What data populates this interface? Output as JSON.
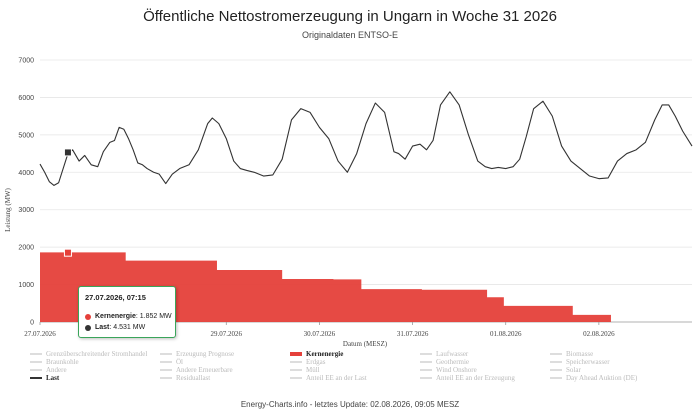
{
  "title": "Öffentliche Nettostromerzeugung in Ungarn in Woche 31 2026",
  "subtitle": "Originaldaten ENTSO-E",
  "footer": "Energy-Charts.info - letztes Update: 02.08.2026, 09:05 MESZ",
  "tooltip": {
    "header": "27.07.2026, 07:15",
    "rows": [
      {
        "label": "Kernenergie",
        "value": "1.852 MW",
        "color": "#e5403a"
      },
      {
        "label": "Last",
        "value": "4.531 MW",
        "color": "#333333"
      }
    ]
  },
  "legend": [
    {
      "label": "Grenzüberschreitender Stromhandel",
      "active": false
    },
    {
      "label": "Erzeugung Prognose",
      "active": false
    },
    {
      "label": "Kernenergie",
      "active": true,
      "color": "#e5403a"
    },
    {
      "label": "Laufwasser",
      "active": false
    },
    {
      "label": "Biomasse",
      "active": false
    },
    {
      "label": "Braunkohle",
      "active": false
    },
    {
      "label": "Öl",
      "active": false
    },
    {
      "label": "Erdgas",
      "active": false
    },
    {
      "label": "Geothermie",
      "active": false
    },
    {
      "label": "Speicherwasser",
      "active": false
    },
    {
      "label": "Andere",
      "active": false
    },
    {
      "label": "Andere Erneuerbare",
      "active": false
    },
    {
      "label": "Müll",
      "active": false
    },
    {
      "label": "Wind Onshore",
      "active": false
    },
    {
      "label": "Solar",
      "active": false
    },
    {
      "label": "Last",
      "active": true,
      "color": "#333333"
    },
    {
      "label": "Residuallast",
      "active": false
    },
    {
      "label": "Anteil EE an der Last",
      "active": false
    },
    {
      "label": "Anteil EE an der Erzeugung",
      "active": false
    },
    {
      "label": "Day Ahead Auktion (DE)",
      "active": false
    }
  ],
  "chart_data": {
    "type": "area",
    "ylabel": "Leistung (MW)",
    "xlabel": "Datum (MESZ)",
    "ylim": [
      0,
      7000
    ],
    "yticks": [
      0,
      1000,
      2000,
      3000,
      4000,
      5000,
      6000,
      7000
    ],
    "xlim": [
      0,
      7.0
    ],
    "xtick_labels": [
      "27.07.2026",
      "29.07.2026",
      "30.07.2026",
      "31.07.2026",
      "01.08.2026",
      "02.08.2026"
    ],
    "xtick_positions": [
      0,
      2,
      3,
      4,
      5,
      6
    ],
    "grid": true,
    "series": [
      {
        "name": "Kernenergie",
        "kind": "area",
        "color": "#e5403a",
        "x": [
          0,
          0.92,
          0.92,
          1.9,
          1.9,
          2.6,
          2.6,
          3.15,
          3.15,
          3.45,
          3.45,
          4.1,
          4.1,
          4.55,
          4.55,
          4.8,
          4.8,
          4.98,
          4.98,
          5.72,
          5.72,
          5.93,
          5.93,
          6.13
        ],
        "y": [
          1860,
          1860,
          1640,
          1640,
          1390,
          1390,
          1150,
          1150,
          1140,
          1140,
          880,
          880,
          860,
          860,
          860,
          860,
          660,
          660,
          430,
          430,
          190,
          190,
          190,
          190
        ]
      },
      {
        "name": "Last",
        "kind": "line",
        "color": "#333333",
        "x": [
          0,
          0.05,
          0.1,
          0.15,
          0.2,
          0.3,
          0.35,
          0.42,
          0.48,
          0.55,
          0.62,
          0.68,
          0.75,
          0.8,
          0.85,
          0.9,
          0.95,
          1.0,
          1.05,
          1.1,
          1.15,
          1.22,
          1.28,
          1.35,
          1.42,
          1.5,
          1.6,
          1.7,
          1.8,
          1.85,
          1.92,
          2.0,
          2.08,
          2.15,
          2.22,
          2.3,
          2.4,
          2.5,
          2.6,
          2.7,
          2.8,
          2.9,
          3.0,
          3.1,
          3.2,
          3.3,
          3.4,
          3.5,
          3.6,
          3.7,
          3.8,
          3.85,
          3.92,
          4.0,
          4.08,
          4.15,
          4.22,
          4.3,
          4.4,
          4.5,
          4.6,
          4.7,
          4.78,
          4.85,
          4.92,
          5.0,
          5.08,
          5.15,
          5.22,
          5.3,
          5.4,
          5.5,
          5.6,
          5.7,
          5.8,
          5.9,
          6.0,
          6.1,
          6.2,
          6.3,
          6.4,
          6.5,
          6.6,
          6.68,
          6.75,
          6.82,
          6.9,
          7.0
        ],
        "y": [
          4220,
          4000,
          3750,
          3650,
          3720,
          4500,
          4600,
          4300,
          4450,
          4200,
          4150,
          4550,
          4800,
          4850,
          5200,
          5150,
          4900,
          4600,
          4250,
          4200,
          4100,
          4000,
          3950,
          3700,
          3950,
          4100,
          4200,
          4600,
          5300,
          5450,
          5300,
          4900,
          4300,
          4100,
          4050,
          4000,
          3900,
          3930,
          4350,
          5400,
          5700,
          5600,
          5200,
          4900,
          4300,
          4000,
          4500,
          5300,
          5850,
          5600,
          4550,
          4500,
          4350,
          4700,
          4750,
          4600,
          4850,
          5800,
          6150,
          5800,
          5000,
          4300,
          4150,
          4100,
          4130,
          4100,
          4150,
          4350,
          4950,
          5700,
          5900,
          5500,
          4700,
          4300,
          4100,
          3900,
          3830,
          3850,
          4300,
          4500,
          4600,
          4800,
          5400,
          5800,
          5800,
          5500,
          5100,
          4700
        ]
      }
    ]
  }
}
